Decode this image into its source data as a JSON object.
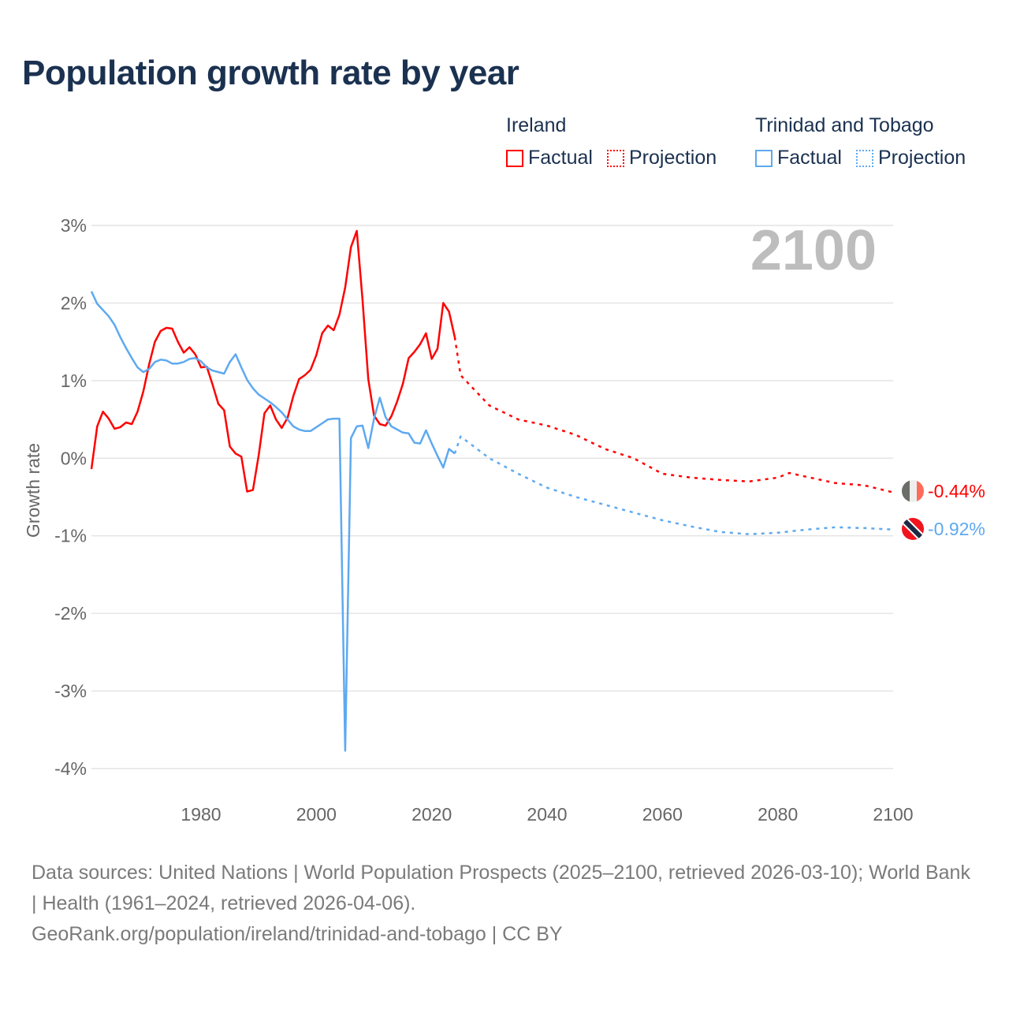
{
  "title": "Population growth rate by year",
  "legend": {
    "groups": [
      {
        "name": "Ireland",
        "factual": "Factual",
        "projection": "Projection",
        "color": "#ff0000"
      },
      {
        "name": "Trinidad and Tobago",
        "factual": "Factual",
        "projection": "Projection",
        "color": "#5ea9f0"
      }
    ]
  },
  "year_label": "2100",
  "end_labels": {
    "ireland": "-0.44%",
    "trinidad": "-0.92%"
  },
  "footer": {
    "sources": "Data sources: United Nations | World Population Prospects (2025–2100, retrieved 2026-03-10); World Bank | Health (1961–2024, retrieved 2026-04-06).",
    "credit": "GeoRank.org/population/ireland/trinidad-and-tobago | CC BY"
  },
  "chart_data": {
    "type": "line",
    "title": "Population growth rate by year",
    "xlabel": "",
    "ylabel": "Growth rate",
    "xlim": [
      1961,
      2100
    ],
    "ylim": [
      -4,
      3
    ],
    "x_ticks": [
      1980,
      2000,
      2020,
      2040,
      2060,
      2080,
      2100
    ],
    "y_ticks": [
      3,
      2,
      1,
      0,
      -1,
      -2,
      -3,
      -4
    ],
    "y_tick_labels": [
      "3%",
      "2%",
      "1%",
      "0%",
      "-1%",
      "-2%",
      "-3%",
      "-4%"
    ],
    "grid": true,
    "legend_position": "top-right",
    "series": [
      {
        "name": "Ireland Factual",
        "color": "#ff0000",
        "dashed": false,
        "x": [
          1961,
          1962,
          1963,
          1964,
          1965,
          1966,
          1967,
          1968,
          1969,
          1970,
          1971,
          1972,
          1973,
          1974,
          1975,
          1976,
          1977,
          1978,
          1979,
          1980,
          1981,
          1982,
          1983,
          1984,
          1985,
          1986,
          1987,
          1988,
          1989,
          1990,
          1991,
          1992,
          1993,
          1994,
          1995,
          1996,
          1997,
          1998,
          1999,
          2000,
          2001,
          2002,
          2003,
          2004,
          2005,
          2006,
          2007,
          2008,
          2009,
          2010,
          2011,
          2012,
          2013,
          2014,
          2015,
          2016,
          2017,
          2018,
          2019,
          2020,
          2021,
          2022,
          2023,
          2024
        ],
        "y": [
          -0.14,
          0.41,
          0.6,
          0.51,
          0.38,
          0.4,
          0.46,
          0.44,
          0.6,
          0.86,
          1.21,
          1.5,
          1.64,
          1.68,
          1.67,
          1.5,
          1.36,
          1.43,
          1.34,
          1.17,
          1.18,
          0.95,
          0.7,
          0.62,
          0.15,
          0.06,
          0.02,
          -0.43,
          -0.41,
          0.04,
          0.58,
          0.68,
          0.5,
          0.39,
          0.52,
          0.8,
          1.02,
          1.07,
          1.14,
          1.33,
          1.61,
          1.71,
          1.65,
          1.85,
          2.2,
          2.72,
          2.93,
          2.04,
          1.02,
          0.55,
          0.44,
          0.42,
          0.54,
          0.73,
          0.96,
          1.29,
          1.37,
          1.47,
          1.61,
          1.28,
          1.41,
          2.0,
          1.89,
          1.56
        ]
      },
      {
        "name": "Ireland Projection",
        "color": "#ff0000",
        "dashed": true,
        "x": [
          2024,
          2025,
          2030,
          2035,
          2040,
          2045,
          2050,
          2055,
          2060,
          2065,
          2070,
          2075,
          2080,
          2082,
          2085,
          2090,
          2095,
          2100
        ],
        "y": [
          1.56,
          1.07,
          0.68,
          0.5,
          0.42,
          0.3,
          0.12,
          0.0,
          -0.2,
          -0.25,
          -0.28,
          -0.3,
          -0.25,
          -0.19,
          -0.24,
          -0.32,
          -0.35,
          -0.44
        ]
      },
      {
        "name": "Trinidad and Tobago Factual",
        "color": "#5ea9f0",
        "dashed": false,
        "x": [
          1961,
          1962,
          1963,
          1964,
          1965,
          1966,
          1967,
          1968,
          1969,
          1970,
          1971,
          1972,
          1973,
          1974,
          1975,
          1976,
          1977,
          1978,
          1979,
          1980,
          1981,
          1982,
          1983,
          1984,
          1985,
          1986,
          1987,
          1988,
          1989,
          1990,
          1991,
          1992,
          1993,
          1994,
          1995,
          1996,
          1997,
          1998,
          1999,
          2000,
          2001,
          2002,
          2003,
          2004,
          2005,
          2006,
          2007,
          2008,
          2009,
          2010,
          2011,
          2012,
          2013,
          2014,
          2015,
          2016,
          2017,
          2018,
          2019,
          2020,
          2021,
          2022,
          2023,
          2024
        ],
        "y": [
          2.15,
          1.99,
          1.91,
          1.83,
          1.72,
          1.56,
          1.42,
          1.29,
          1.17,
          1.11,
          1.15,
          1.24,
          1.27,
          1.26,
          1.22,
          1.22,
          1.24,
          1.28,
          1.29,
          1.25,
          1.17,
          1.13,
          1.11,
          1.09,
          1.24,
          1.34,
          1.17,
          1.01,
          0.9,
          0.82,
          0.77,
          0.72,
          0.66,
          0.59,
          0.5,
          0.41,
          0.37,
          0.35,
          0.35,
          0.4,
          0.45,
          0.5,
          0.51,
          0.51,
          -3.77,
          0.26,
          0.41,
          0.42,
          0.13,
          0.51,
          0.78,
          0.53,
          0.41,
          0.37,
          0.33,
          0.32,
          0.2,
          0.19,
          0.36,
          0.19,
          0.03,
          -0.12,
          0.12,
          0.06
        ]
      },
      {
        "name": "Trinidad and Tobago Projection",
        "color": "#5ea9f0",
        "dashed": true,
        "x": [
          2024,
          2025,
          2030,
          2035,
          2040,
          2045,
          2050,
          2055,
          2060,
          2065,
          2070,
          2075,
          2080,
          2085,
          2090,
          2095,
          2100
        ],
        "y": [
          0.06,
          0.28,
          0.0,
          -0.2,
          -0.38,
          -0.5,
          -0.6,
          -0.7,
          -0.8,
          -0.88,
          -0.95,
          -0.98,
          -0.96,
          -0.92,
          -0.89,
          -0.9,
          -0.92
        ]
      }
    ]
  }
}
